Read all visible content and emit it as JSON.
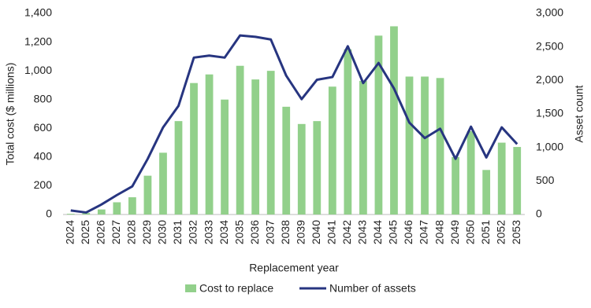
{
  "chart_data": {
    "type": "bar-line",
    "categories": [
      "2024",
      "2025",
      "2026",
      "2027",
      "2028",
      "2029",
      "2030",
      "2031",
      "2032",
      "2033",
      "2034",
      "2035",
      "2036",
      "2037",
      "2038",
      "2039",
      "2040",
      "2041",
      "2042",
      "2043",
      "2044",
      "2045",
      "2046",
      "2047",
      "2048",
      "2049",
      "2050",
      "2051",
      "2052",
      "2053"
    ],
    "series": [
      {
        "name": "Cost to replace",
        "color": "#92d08b",
        "kind": "bar",
        "values": [
          5,
          10,
          35,
          85,
          120,
          270,
          430,
          650,
          915,
          975,
          800,
          1035,
          940,
          1000,
          750,
          630,
          650,
          890,
          1150,
          930,
          1245,
          1310,
          960,
          960,
          950,
          400,
          580,
          310,
          500,
          470
        ]
      },
      {
        "name": "Number of assets",
        "color": "#273580",
        "kind": "line",
        "axis": "y2",
        "values": [
          60,
          30,
          150,
          290,
          420,
          830,
          1300,
          1620,
          2340,
          2370,
          2340,
          2670,
          2650,
          2610,
          2070,
          1720,
          2010,
          2050,
          2510,
          1960,
          2260,
          1880,
          1370,
          1140,
          1280,
          830,
          1310,
          850,
          1300,
          1050
        ]
      }
    ],
    "ylabel": "Total cost ($ millions)",
    "y2label": "Asset count",
    "xlabel": "Replacement year",
    "ylim": [
      0,
      1400
    ],
    "yticks": [
      0,
      200,
      400,
      600,
      800,
      {
        "value": 1000,
        "label": "1,000"
      },
      {
        "value": 1200,
        "label": "1,200"
      },
      {
        "value": 1400,
        "label": "1,400"
      }
    ],
    "y2lim": [
      0,
      3000
    ],
    "y2ticks": [
      0,
      500,
      {
        "value": 1000,
        "label": "1,000"
      },
      {
        "value": 1500,
        "label": "1,500"
      },
      {
        "value": 2000,
        "label": "2,000"
      },
      {
        "value": 2500,
        "label": "2,500"
      },
      {
        "value": 3000,
        "label": "3,000"
      }
    ],
    "grid": false,
    "legend": "bottom"
  }
}
